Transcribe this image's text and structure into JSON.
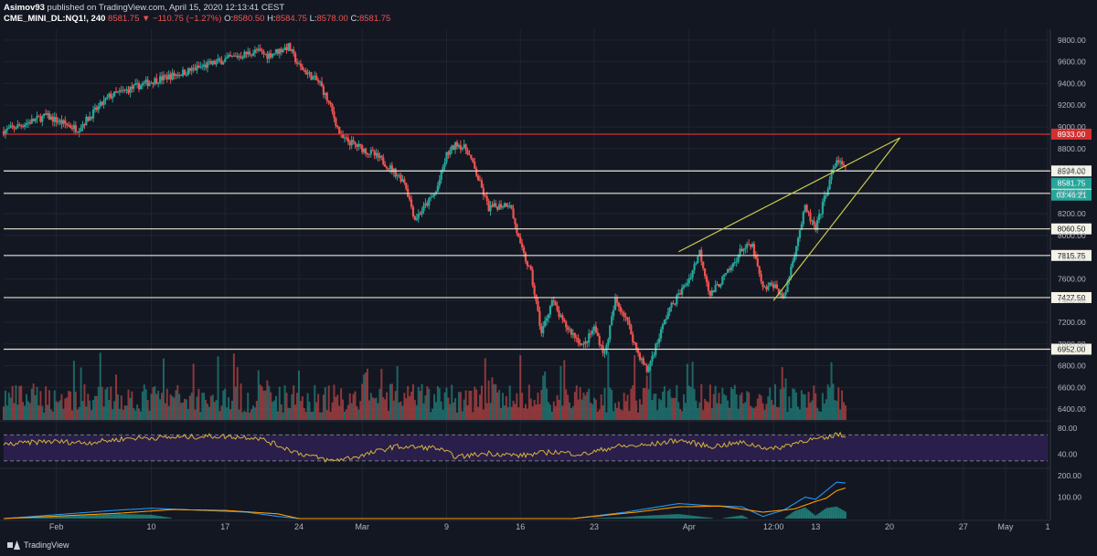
{
  "header": {
    "publisher_line_user": "Asimov93",
    "publisher_line_rest": " published on TradingView.com, April 15, 2020 12:13:41 CEST",
    "symbol": "CME_MINI_DL:NQ1!, 240",
    "last": "8581.75",
    "change": "▼ −110.75 (−1.27%)",
    "o_label": "O:",
    "o_val": "8580.50",
    "h_label": "H:",
    "h_val": "8584.75",
    "l_label": "L:",
    "l_val": "8578.00",
    "c_label": "C:",
    "c_val": "8581.75"
  },
  "footer": {
    "brand": "TradingView"
  },
  "colors": {
    "background": "#131722",
    "grid": "#1f2433",
    "up": "#26a69a",
    "down": "#ef5350",
    "level_line": "#e8e4d0",
    "resistance_line": "#d32f2f",
    "wedge": "#c8c84b",
    "rsi_band": "#2a1f4a",
    "rsi_line": "#d4b33a",
    "macd_line": "#2196f3",
    "signal_line": "#ff9800"
  },
  "chart_data": [
    {
      "type": "candlestick",
      "panel": "price",
      "ylim": [
        6300,
        9900
      ],
      "y_ticks": [
        "9800.00",
        "9600.00",
        "9400.00",
        "9200.00",
        "9000.00",
        "8800.00",
        "8600.00",
        "8400.00",
        "8200.00",
        "8000.00",
        "7800.00",
        "7600.00",
        "7400.00",
        "7200.00",
        "7000.00",
        "6800.00",
        "6600.00",
        "6400.00"
      ],
      "x_ticks": [
        "Feb",
        "10",
        "17",
        "24",
        "Mar",
        "9",
        "16",
        "23",
        "Apr",
        "12:00",
        "13",
        "20",
        "27",
        "May",
        "1"
      ],
      "x_tick_dates": [
        "2020-02-01",
        "2020-02-10",
        "2020-02-17",
        "2020-02-24",
        "2020-03-01",
        "2020-03-09",
        "2020-03-16",
        "2020-03-23",
        "2020-04-01",
        "2020-04-09",
        "2020-04-13",
        "2020-04-20",
        "2020-04-27",
        "2020-05-01",
        "2020-05-05"
      ],
      "x_range": [
        "2020-01-27",
        "2020-05-05"
      ],
      "price_path": [
        [
          "2020-01-27",
          8960
        ],
        [
          "2020-01-31",
          9100
        ],
        [
          "2020-02-03",
          8980
        ],
        [
          "2020-02-06",
          9280
        ],
        [
          "2020-02-10",
          9420
        ],
        [
          "2020-02-13",
          9500
        ],
        [
          "2020-02-17",
          9620
        ],
        [
          "2020-02-20",
          9700
        ],
        [
          "2020-02-21",
          9660
        ],
        [
          "2020-02-23",
          9740
        ],
        [
          "2020-02-24",
          9560
        ],
        [
          "2020-02-26",
          9400
        ],
        [
          "2020-02-27",
          9180
        ],
        [
          "2020-02-28",
          8900
        ],
        [
          "2020-03-02",
          8750
        ],
        [
          "2020-03-03",
          8680
        ],
        [
          "2020-03-05",
          8500
        ],
        [
          "2020-03-06",
          8150
        ],
        [
          "2020-03-08",
          8400
        ],
        [
          "2020-03-09",
          8740
        ],
        [
          "2020-03-10",
          8850
        ],
        [
          "2020-03-11",
          8780
        ],
        [
          "2020-03-12",
          8520
        ],
        [
          "2020-03-13",
          8250
        ],
        [
          "2020-03-15",
          8300
        ],
        [
          "2020-03-16",
          7900
        ],
        [
          "2020-03-17",
          7650
        ],
        [
          "2020-03-18",
          7100
        ],
        [
          "2020-03-19",
          7400
        ],
        [
          "2020-03-20",
          7200
        ],
        [
          "2020-03-22",
          6980
        ],
        [
          "2020-03-23",
          7150
        ],
        [
          "2020-03-24",
          6900
        ],
        [
          "2020-03-25",
          7400
        ],
        [
          "2020-03-26",
          7250
        ],
        [
          "2020-03-27",
          6950
        ],
        [
          "2020-03-28",
          6750
        ],
        [
          "2020-03-30",
          7300
        ],
        [
          "2020-04-01",
          7600
        ],
        [
          "2020-04-02",
          7850
        ],
        [
          "2020-04-03",
          7450
        ],
        [
          "2020-04-05",
          7700
        ],
        [
          "2020-04-06",
          7880
        ],
        [
          "2020-04-07",
          7900
        ],
        [
          "2020-04-08",
          7500
        ],
        [
          "2020-04-09",
          7550
        ],
        [
          "2020-04-10",
          7420
        ],
        [
          "2020-04-11",
          7850
        ],
        [
          "2020-04-12",
          8250
        ],
        [
          "2020-04-13",
          8050
        ],
        [
          "2020-04-14",
          8400
        ],
        [
          "2020-04-15",
          8700
        ],
        [
          "2020-04-16",
          8582
        ]
      ],
      "horizontal_levels": [
        {
          "value": 8933.0,
          "label": "8933.00",
          "style": "resistance"
        },
        {
          "value": 8594.0,
          "label": "8594.00",
          "style": "level"
        },
        {
          "value": 8387.75,
          "label": "8387.75",
          "style": "level"
        },
        {
          "value": 8060.5,
          "label": "8060.50",
          "style": "level"
        },
        {
          "value": 7815.75,
          "label": "7815.75",
          "style": "level"
        },
        {
          "value": 7427.5,
          "label": "7427.50",
          "style": "level"
        },
        {
          "value": 6952.0,
          "label": "6952.00",
          "style": "level"
        }
      ],
      "last_price": {
        "value": 8581.75,
        "label": "8581.75",
        "countdown": "03:46:21"
      },
      "rising_wedge": {
        "upper": [
          [
            "2020-03-31",
            7850
          ],
          [
            "2020-04-21",
            8900
          ]
        ],
        "lower": [
          [
            "2020-04-09",
            7400
          ],
          [
            "2020-04-21",
            8900
          ]
        ]
      }
    },
    {
      "type": "bar",
      "panel": "volume",
      "note_series": "volume histogram (unlabeled)"
    },
    {
      "type": "line",
      "panel": "rsi",
      "ylim": [
        20,
        90
      ],
      "y_ticks": [
        "80.00",
        "40.00"
      ],
      "band": [
        30,
        70
      ],
      "rsi_path": [
        [
          "2020-01-27",
          55
        ],
        [
          "2020-01-31",
          60
        ],
        [
          "2020-02-04",
          58
        ],
        [
          "2020-02-08",
          65
        ],
        [
          "2020-02-12",
          66
        ],
        [
          "2020-02-16",
          68
        ],
        [
          "2020-02-20",
          66
        ],
        [
          "2020-02-24",
          42
        ],
        [
          "2020-02-27",
          30
        ],
        [
          "2020-03-01",
          38
        ],
        [
          "2020-03-04",
          52
        ],
        [
          "2020-03-08",
          50
        ],
        [
          "2020-03-10",
          36
        ],
        [
          "2020-03-13",
          42
        ],
        [
          "2020-03-16",
          38
        ],
        [
          "2020-03-19",
          44
        ],
        [
          "2020-03-22",
          40
        ],
        [
          "2020-03-25",
          52
        ],
        [
          "2020-03-28",
          54
        ],
        [
          "2020-03-31",
          62
        ],
        [
          "2020-04-03",
          52
        ],
        [
          "2020-04-06",
          58
        ],
        [
          "2020-04-09",
          48
        ],
        [
          "2020-04-12",
          62
        ],
        [
          "2020-04-14",
          64
        ],
        [
          "2020-04-15",
          72
        ],
        [
          "2020-04-16",
          65
        ]
      ]
    },
    {
      "type": "line",
      "panel": "macd",
      "ylim": [
        0,
        230
      ],
      "y_ticks": [
        "200.00",
        "100.00"
      ],
      "macd_path": [
        [
          "2020-01-27",
          0
        ],
        [
          "2020-02-07",
          40
        ],
        [
          "2020-02-10",
          48
        ],
        [
          "2020-02-14",
          40
        ],
        [
          "2020-02-19",
          30
        ],
        [
          "2020-02-22",
          10
        ],
        [
          "2020-02-24",
          0
        ],
        [
          "2020-03-21",
          0
        ],
        [
          "2020-03-26",
          30
        ],
        [
          "2020-03-31",
          70
        ],
        [
          "2020-04-03",
          60
        ],
        [
          "2020-04-06",
          55
        ],
        [
          "2020-04-08",
          10
        ],
        [
          "2020-04-10",
          40
        ],
        [
          "2020-04-12",
          100
        ],
        [
          "2020-04-13",
          90
        ],
        [
          "2020-04-14",
          130
        ],
        [
          "2020-04-15",
          170
        ],
        [
          "2020-04-16",
          165
        ]
      ],
      "signal_path": [
        [
          "2020-01-27",
          0
        ],
        [
          "2020-02-07",
          25
        ],
        [
          "2020-02-12",
          42
        ],
        [
          "2020-02-17",
          38
        ],
        [
          "2020-02-22",
          22
        ],
        [
          "2020-02-24",
          0
        ],
        [
          "2020-03-21",
          0
        ],
        [
          "2020-03-27",
          30
        ],
        [
          "2020-03-31",
          55
        ],
        [
          "2020-04-04",
          58
        ],
        [
          "2020-04-08",
          30
        ],
        [
          "2020-04-11",
          45
        ],
        [
          "2020-04-13",
          80
        ],
        [
          "2020-04-14",
          95
        ],
        [
          "2020-04-15",
          130
        ],
        [
          "2020-04-16",
          145
        ]
      ]
    }
  ]
}
